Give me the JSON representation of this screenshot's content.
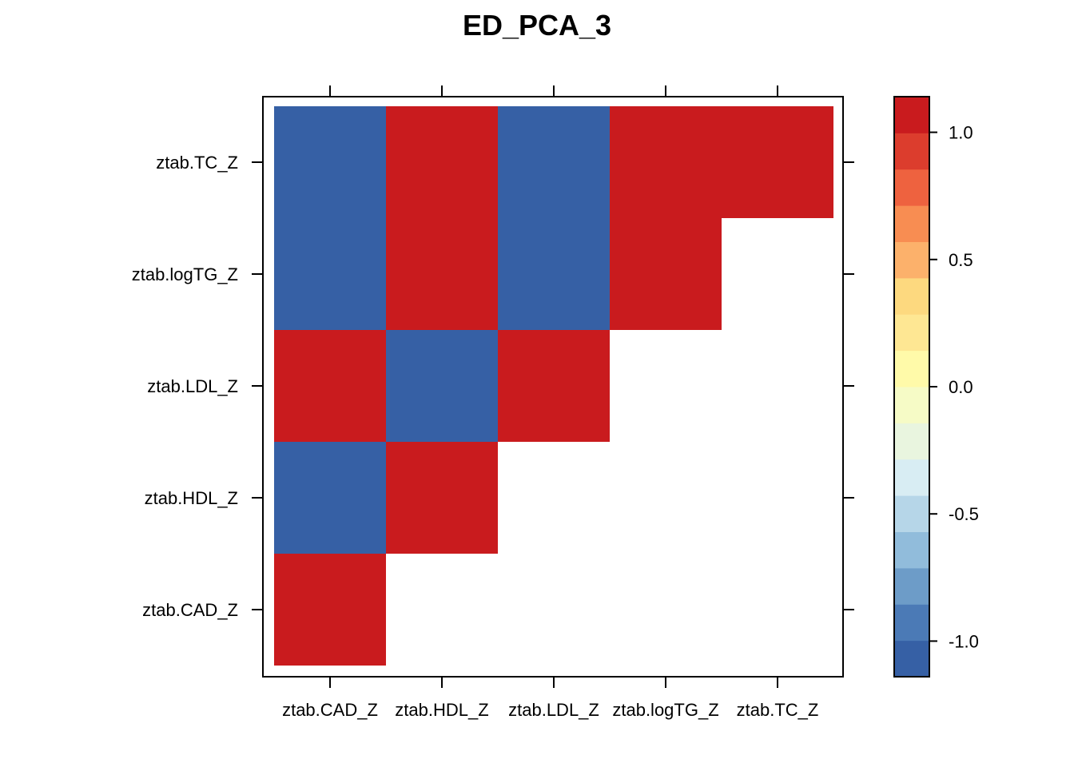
{
  "chart_data": {
    "type": "heatmap",
    "title": "ED_PCA_3",
    "x_categories": [
      "ztab.CAD_Z",
      "ztab.HDL_Z",
      "ztab.LDL_Z",
      "ztab.logTG_Z",
      "ztab.TC_Z"
    ],
    "y_categories": [
      "ztab.CAD_Z",
      "ztab.HDL_Z",
      "ztab.LDL_Z",
      "ztab.logTG_Z",
      "ztab.TC_Z"
    ],
    "matrix": [
      [
        1,
        -1,
        1,
        -1,
        -1
      ],
      [
        null,
        1,
        -1,
        1,
        1
      ],
      [
        null,
        null,
        1,
        -1,
        -1
      ],
      [
        null,
        null,
        null,
        1,
        1
      ],
      [
        null,
        null,
        null,
        null,
        1
      ]
    ],
    "colorbar": {
      "range": [
        -1.14,
        1.14
      ],
      "ticks": [
        -1.0,
        -0.5,
        0.0,
        0.5,
        1.0
      ],
      "tick_labels": [
        "-1.0",
        "-0.5",
        "0.0",
        "0.5",
        "1.0"
      ],
      "colors": [
        "#3660A5",
        "#4B7AB6",
        "#6D9CC8",
        "#91BCDB",
        "#B6D6E8",
        "#D8EDF3",
        "#E9F5DF",
        "#F6FBC6",
        "#FFFAA9",
        "#FEE793",
        "#FDD97F",
        "#FCB16B",
        "#F88D52",
        "#EE623F",
        "#DC3D2D",
        "#C91B1E"
      ]
    },
    "grid": false
  }
}
